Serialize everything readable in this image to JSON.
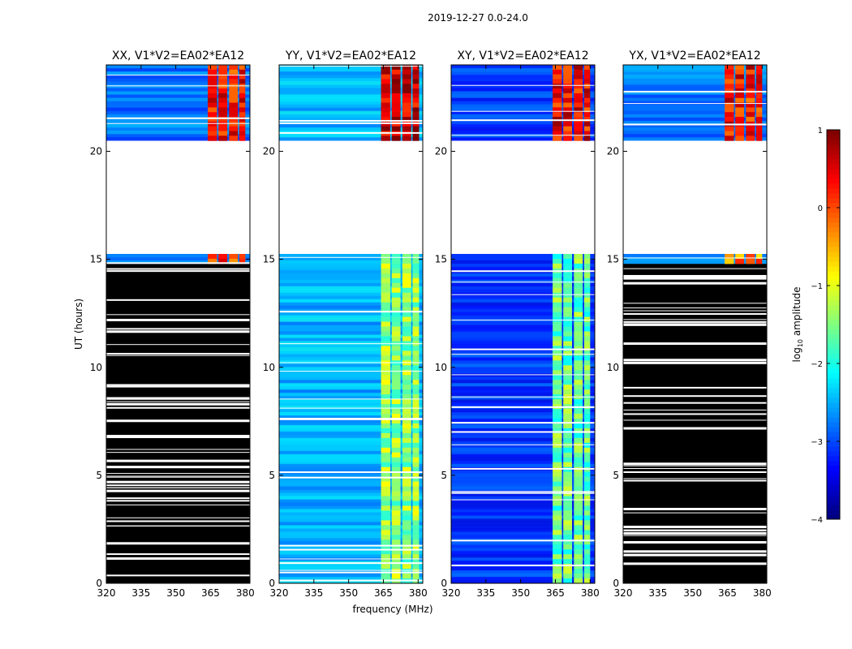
{
  "figure": {
    "suptitle": "2019-12-27 0.0-24.0"
  },
  "chart_data": [
    {
      "type": "heatmap",
      "title": "XX, V1*V2=EA02*EA12",
      "pol": "XX",
      "xlabel": "",
      "ylabel": "UT (hours)",
      "xlim": [
        320,
        382
      ],
      "ylim": [
        0,
        24
      ],
      "xticks": [
        320,
        335,
        350,
        365,
        380
      ],
      "yticks": [
        0,
        5,
        10,
        15,
        20
      ],
      "baseline_log_amplitude": -2.8,
      "rfi_bands_mhz": [
        [
          363.8,
          367.8
        ],
        [
          368.4,
          372.2
        ],
        [
          373.0,
          376.8
        ],
        [
          377.4,
          380.0
        ]
      ],
      "segments": [
        {
          "ut_start": 0.0,
          "ut_end": 14.8,
          "state": "flagged"
        },
        {
          "ut_start": 14.8,
          "ut_end": 15.25,
          "state": "data",
          "rfi_log_amplitude": 0.0
        },
        {
          "ut_start": 15.25,
          "ut_end": 20.5,
          "state": "nodata"
        },
        {
          "ut_start": 20.5,
          "ut_end": 24.0,
          "state": "data",
          "rfi_log_amplitude": 0.3
        }
      ]
    },
    {
      "type": "heatmap",
      "title": "YY, V1*V2=EA02*EA12",
      "pol": "YY",
      "xlabel": "",
      "ylabel": "",
      "xlim": [
        320,
        382
      ],
      "ylim": [
        0,
        24
      ],
      "xticks": [
        320,
        335,
        350,
        365,
        380
      ],
      "yticks": [
        0,
        5,
        10,
        15,
        20
      ],
      "baseline_log_amplitude": -2.5,
      "rfi_bands_mhz": [
        [
          364.0,
          368.0
        ],
        [
          368.6,
          372.4
        ],
        [
          373.2,
          377.0
        ],
        [
          377.6,
          380.4
        ]
      ],
      "segments": [
        {
          "ut_start": 0.0,
          "ut_end": 15.25,
          "state": "data",
          "rfi_log_amplitude": -1.4
        },
        {
          "ut_start": 15.25,
          "ut_end": 20.5,
          "state": "nodata"
        },
        {
          "ut_start": 20.5,
          "ut_end": 24.0,
          "state": "data",
          "rfi_log_amplitude": 0.6
        }
      ]
    },
    {
      "type": "heatmap",
      "title": "XY, V1*V2=EA02*EA12",
      "pol": "XY",
      "xlabel": "frequency (MHz)",
      "ylabel": "",
      "xlim": [
        320,
        382
      ],
      "ylim": [
        0,
        24
      ],
      "xticks": [
        320,
        335,
        350,
        365,
        380
      ],
      "yticks": [
        0,
        5,
        10,
        15,
        20
      ],
      "baseline_log_amplitude": -3.1,
      "rfi_bands_mhz": [
        [
          363.8,
          367.8
        ],
        [
          368.4,
          372.2
        ],
        [
          373.0,
          376.8
        ],
        [
          377.4,
          380.0
        ]
      ],
      "segments": [
        {
          "ut_start": 0.0,
          "ut_end": 15.25,
          "state": "data",
          "rfi_log_amplitude": -1.6
        },
        {
          "ut_start": 15.25,
          "ut_end": 20.5,
          "state": "nodata"
        },
        {
          "ut_start": 20.5,
          "ut_end": 24.0,
          "state": "data",
          "rfi_log_amplitude": 0.4
        }
      ]
    },
    {
      "type": "heatmap",
      "title": "YX, V1*V2=EA02*EA12",
      "pol": "YX",
      "xlabel": "",
      "ylabel": "",
      "xlim": [
        320,
        382
      ],
      "ylim": [
        0,
        24
      ],
      "xticks": [
        320,
        335,
        350,
        365,
        380
      ],
      "yticks": [
        0,
        5,
        10,
        15,
        20
      ],
      "baseline_log_amplitude": -2.8,
      "rfi_bands_mhz": [
        [
          363.8,
          367.8
        ],
        [
          368.4,
          372.2
        ],
        [
          373.0,
          376.8
        ],
        [
          377.4,
          380.0
        ]
      ],
      "segments": [
        {
          "ut_start": 0.0,
          "ut_end": 14.8,
          "state": "flagged"
        },
        {
          "ut_start": 14.8,
          "ut_end": 15.25,
          "state": "data",
          "rfi_log_amplitude": -0.3
        },
        {
          "ut_start": 15.25,
          "ut_end": 20.5,
          "state": "nodata"
        },
        {
          "ut_start": 20.5,
          "ut_end": 24.0,
          "state": "data",
          "rfi_log_amplitude": 0.3
        }
      ]
    }
  ],
  "colorbar": {
    "label_prefix": "log",
    "label_sub": "10",
    "label_suffix": " amplitude",
    "min": -4,
    "max": 1,
    "ticks": [
      "−4",
      "−3",
      "−2",
      "−1",
      "0",
      "1"
    ],
    "colormap": "jet"
  }
}
